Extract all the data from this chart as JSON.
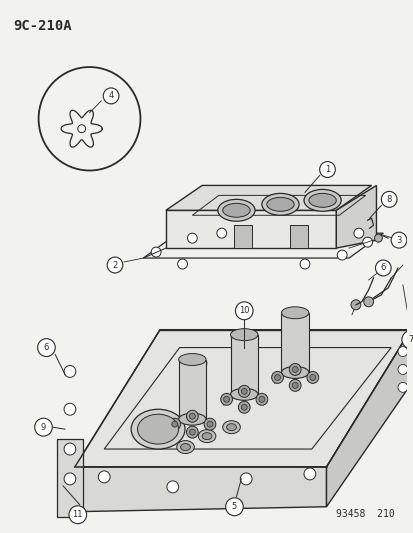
{
  "title": "9C-210A",
  "footer": "93458  210",
  "bg": "#f2f2ee",
  "lc": "#2a2a2a",
  "fig_width": 4.14,
  "fig_height": 5.33,
  "dpi": 100
}
